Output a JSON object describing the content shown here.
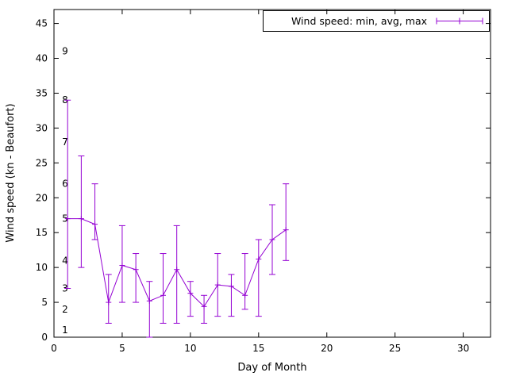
{
  "chart_data": {
    "type": "line",
    "title": "",
    "legend_entry": "Wind speed: min, avg, max",
    "xlabel": "Day of Month",
    "ylabel": "Wind speed (kn - Beaufort)",
    "xlim": [
      0,
      32
    ],
    "ylim": [
      0,
      47
    ],
    "x_ticks": [
      0,
      5,
      10,
      15,
      20,
      25,
      30
    ],
    "y_ticks": [
      0,
      5,
      10,
      15,
      20,
      25,
      30,
      35,
      40,
      45
    ],
    "grid": false,
    "legend_position": "top-right",
    "series_color": "#9400d3",
    "axis_color": "#000000",
    "beaufort_scale_labels": [
      {
        "label": "1",
        "kn": 1
      },
      {
        "label": "2",
        "kn": 4
      },
      {
        "label": "3",
        "kn": 7
      },
      {
        "label": "4",
        "kn": 11
      },
      {
        "label": "5",
        "kn": 17
      },
      {
        "label": "6",
        "kn": 22
      },
      {
        "label": "7",
        "kn": 28
      },
      {
        "label": "8",
        "kn": 34
      },
      {
        "label": "9",
        "kn": 41
      }
    ],
    "points": [
      {
        "day": 1,
        "min": 7,
        "avg": 17.0,
        "max": 34
      },
      {
        "day": 2,
        "min": 10,
        "avg": 17.0,
        "max": 26
      },
      {
        "day": 3,
        "min": 14,
        "avg": 16.2,
        "max": 22
      },
      {
        "day": 4,
        "min": 2,
        "avg": 5.0,
        "max": 9
      },
      {
        "day": 5,
        "min": 5,
        "avg": 10.3,
        "max": 16
      },
      {
        "day": 6,
        "min": 5,
        "avg": 9.7,
        "max": 12
      },
      {
        "day": 7,
        "min": 0,
        "avg": 5.2,
        "max": 8
      },
      {
        "day": 8,
        "min": 2,
        "avg": 6.0,
        "max": 12
      },
      {
        "day": 9,
        "min": 2,
        "avg": 9.7,
        "max": 16
      },
      {
        "day": 10,
        "min": 3,
        "avg": 6.3,
        "max": 8
      },
      {
        "day": 11,
        "min": 2,
        "avg": 4.4,
        "max": 6
      },
      {
        "day": 12,
        "min": 3,
        "avg": 7.5,
        "max": 12
      },
      {
        "day": 13,
        "min": 3,
        "avg": 7.3,
        "max": 9
      },
      {
        "day": 14,
        "min": 4,
        "avg": 6.0,
        "max": 12
      },
      {
        "day": 15,
        "min": 3,
        "avg": 11.2,
        "max": 14
      },
      {
        "day": 16,
        "min": 9,
        "avg": 14.0,
        "max": 19
      },
      {
        "day": 17,
        "min": 11,
        "avg": 15.4,
        "max": 22
      }
    ]
  }
}
